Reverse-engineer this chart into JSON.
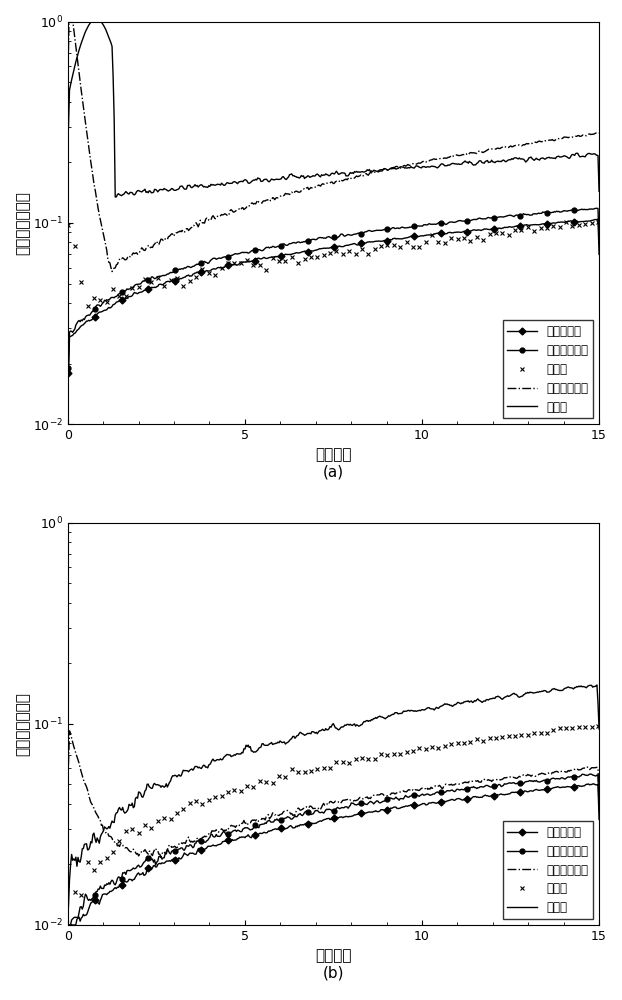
{
  "title_a": "(a)",
  "title_b": "(b)",
  "xlabel": "形状参数",
  "ylabel": "相对均方根误差",
  "xlim": [
    0,
    15
  ],
  "ylim_a": [
    0.01,
    1.0
  ],
  "ylim_b": [
    0.01,
    1.0
  ],
  "legend_labels": [
    "矩估计",
    "本发明",
    "分数阶矩估计",
    "最大似然估计",
    "克拉美罗界"
  ],
  "n_points": 500,
  "seed": 42
}
